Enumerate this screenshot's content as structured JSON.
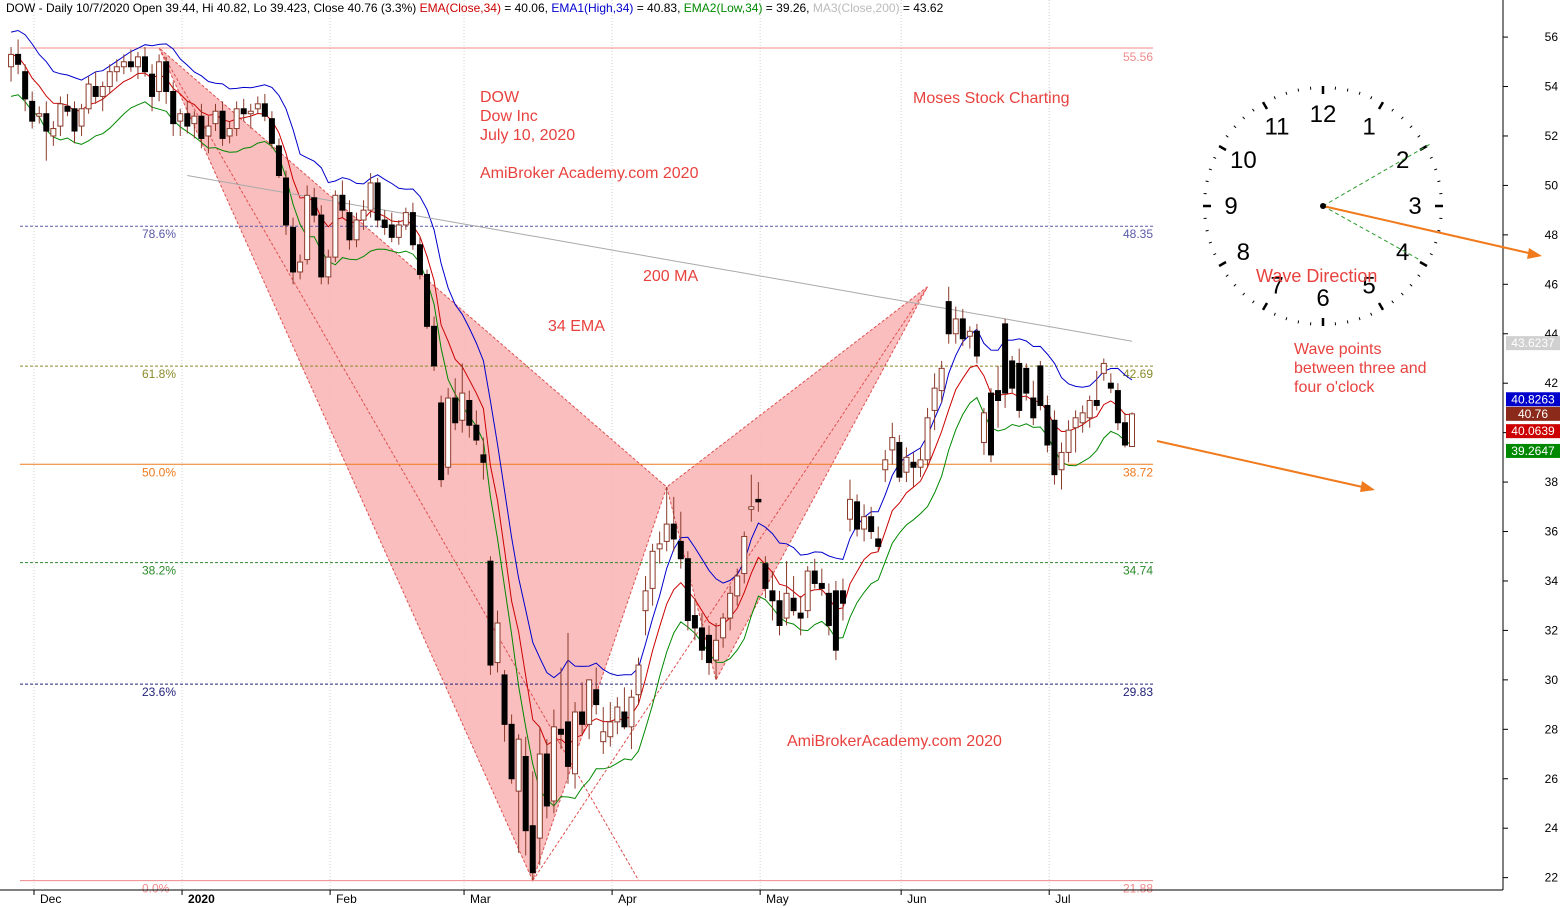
{
  "header": {
    "symbol_info": "DOW - Daily 10/7/2020 Open 39.44, Hi 40.82, Lo 39.423, Close 40.76 (3.3%)",
    "ema_label": "EMA(Close,34)",
    "ema_value": " = 40.06,",
    "ema1_label": "EMA1(High,34)",
    "ema1_value": " = 40.83,",
    "ema2_label": "EMA2(Low,34)",
    "ema2_value": " = 39.26,",
    "ma3_label": "MA3(Close,200)",
    "ma3_value": " = 43.62"
  },
  "colors": {
    "ema_close": "#cc0000",
    "ema_high": "#0000cc",
    "ema_low": "#008800",
    "ma200": "#aaaaaa",
    "pattern_fill": "#f9b3b3",
    "pattern_stroke": "#e05050",
    "annotation": "#e8423f",
    "arrow": "#f07a1c"
  },
  "annotations": {
    "title_lines": [
      "DOW",
      "Dow Inc",
      "July 10, 2020"
    ],
    "site1": "AmiBroker Academy.com  2020",
    "site2": "AmiBrokerAcademy.com  2020",
    "brand": "Moses Stock Charting",
    "ma_label": "200 MA",
    "ema_label": "34 EMA",
    "wave_direction": "Wave  Direction",
    "wave_points": [
      "Wave points",
      "between three and",
      "four o'clock"
    ]
  },
  "clock": {
    "numbers": [
      "12",
      "1",
      "2",
      "3",
      "4",
      "5",
      "6",
      "7",
      "8",
      "9",
      "10",
      "11"
    ]
  },
  "chart_data": {
    "type": "candlestick",
    "ylim": [
      21.5,
      57.5
    ],
    "y_ticks": [
      22,
      24,
      26,
      28,
      30,
      32,
      34,
      36,
      38,
      40,
      42,
      44,
      46,
      48,
      50,
      52,
      54,
      56
    ],
    "x_labels": [
      "Dec",
      "2020",
      "Feb",
      "Mar",
      "Apr",
      "May",
      "Jun",
      "Jul"
    ],
    "x_label_days": [
      0,
      21,
      42,
      61,
      82,
      103,
      123,
      144
    ],
    "fib_levels": [
      {
        "pct": "78.6%",
        "value": 48.35,
        "color": "#5a5aa8"
      },
      {
        "pct": "61.8%",
        "value": 42.69,
        "color": "#8a8a2a"
      },
      {
        "pct": "50.0%",
        "value": 38.72,
        "color": "#f07a1c"
      },
      {
        "pct": "38.2%",
        "value": 34.74,
        "color": "#2a8a2a"
      },
      {
        "pct": "23.6%",
        "value": 29.83,
        "color": "#22227a"
      },
      {
        "pct": "0.0%",
        "value": 21.88,
        "color": "#f08a8a"
      }
    ],
    "top_level": {
      "value": 55.56,
      "color": "#f08a8a"
    },
    "right_badges": [
      {
        "value": "43.6237",
        "bg": "#d0d0d0",
        "fg": "#000000",
        "y": 43.62
      },
      {
        "value": "40.8263",
        "bg": "#0000cc",
        "fg": "#ffffff",
        "y": 41.35
      },
      {
        "value": "40.76",
        "bg": "#8b2a1a",
        "fg": "#ffffff",
        "y": 40.76
      },
      {
        "value": "40.0639",
        "bg": "#cc0000",
        "fg": "#ffffff",
        "y": 40.06
      },
      {
        "value": "39.2647",
        "bg": "#008800",
        "fg": "#ffffff",
        "y": 39.26
      }
    ],
    "pattern_points": [
      {
        "day": 22,
        "price": 55.56
      },
      {
        "day": 75,
        "price": 21.88
      },
      {
        "day": 94,
        "price": 37.8
      },
      {
        "day": 101,
        "price": 30.0
      },
      {
        "day": 131,
        "price": 45.9
      }
    ],
    "candles": [
      [
        1,
        54.8,
        55.6,
        54.2,
        55.3
      ],
      [
        2,
        55.3,
        55.9,
        54.5,
        54.9
      ],
      [
        3,
        54.6,
        54.9,
        53.0,
        53.5
      ],
      [
        4,
        53.4,
        53.8,
        52.3,
        52.6
      ],
      [
        5,
        52.8,
        53.2,
        52.5,
        52.9
      ],
      [
        6,
        52.9,
        53.4,
        51.0,
        52.2
      ],
      [
        7,
        52.0,
        52.6,
        51.6,
        52.3
      ],
      [
        8,
        52.4,
        53.6,
        52.0,
        53.3
      ],
      [
        9,
        53.2,
        53.7,
        52.8,
        53.0
      ],
      [
        10,
        53.1,
        53.4,
        51.7,
        52.2
      ],
      [
        11,
        52.4,
        53.3,
        52.0,
        53.1
      ],
      [
        12,
        53.1,
        54.4,
        52.9,
        54.1
      ],
      [
        13,
        54.0,
        54.6,
        53.3,
        53.6
      ],
      [
        14,
        53.6,
        54.2,
        53.0,
        54.0
      ],
      [
        15,
        54.0,
        54.9,
        53.7,
        54.6
      ],
      [
        16,
        54.6,
        55.1,
        54.2,
        54.8
      ],
      [
        17,
        54.8,
        55.3,
        54.5,
        55.0
      ],
      [
        18,
        55.0,
        55.5,
        54.6,
        54.8
      ],
      [
        19,
        54.8,
        55.4,
        54.3,
        55.2
      ],
      [
        20,
        55.2,
        55.6,
        54.4,
        54.6
      ],
      [
        21,
        54.5,
        54.9,
        53.0,
        53.6
      ],
      [
        22,
        53.8,
        55.3,
        53.4,
        55.0
      ],
      [
        23,
        55.0,
        55.2,
        53.3,
        53.8
      ],
      [
        24,
        53.8,
        54.2,
        52.0,
        52.5
      ],
      [
        25,
        52.6,
        53.1,
        52.0,
        52.9
      ],
      [
        26,
        52.9,
        53.4,
        52.1,
        52.4
      ],
      [
        27,
        52.5,
        53.0,
        51.9,
        52.8
      ],
      [
        28,
        52.8,
        53.3,
        51.5,
        51.9
      ],
      [
        29,
        52.0,
        52.8,
        51.3,
        52.4
      ],
      [
        30,
        52.5,
        53.3,
        52.2,
        53.0
      ],
      [
        31,
        53.0,
        53.4,
        51.6,
        51.9
      ],
      [
        32,
        52.0,
        52.6,
        51.7,
        52.3
      ],
      [
        33,
        52.3,
        53.4,
        52.0,
        53.1
      ],
      [
        34,
        53.1,
        53.5,
        52.6,
        52.9
      ],
      [
        35,
        52.9,
        53.3,
        52.3,
        53.0
      ],
      [
        36,
        53.1,
        53.6,
        52.9,
        53.3
      ],
      [
        37,
        53.3,
        53.7,
        52.6,
        52.8
      ],
      [
        38,
        52.7,
        53.0,
        51.5,
        51.7
      ],
      [
        39,
        51.6,
        51.9,
        50.3,
        50.4
      ],
      [
        40,
        50.3,
        50.6,
        48.0,
        48.4
      ],
      [
        41,
        48.3,
        48.7,
        46.0,
        46.5
      ],
      [
        42,
        46.5,
        47.2,
        46.2,
        46.9
      ],
      [
        43,
        47.0,
        50.0,
        46.8,
        49.6
      ],
      [
        44,
        49.5,
        49.9,
        48.5,
        48.8
      ],
      [
        45,
        48.8,
        49.2,
        46.0,
        46.3
      ],
      [
        46,
        46.3,
        47.4,
        46.0,
        47.1
      ],
      [
        47,
        47.1,
        49.8,
        46.9,
        49.6
      ],
      [
        48,
        49.6,
        50.2,
        48.7,
        49.0
      ],
      [
        49,
        48.9,
        49.4,
        47.4,
        47.8
      ],
      [
        50,
        47.8,
        48.9,
        47.5,
        48.6
      ],
      [
        51,
        48.6,
        49.4,
        48.2,
        49.0
      ],
      [
        52,
        49.0,
        50.5,
        48.7,
        50.1
      ],
      [
        53,
        50.1,
        50.3,
        48.3,
        48.6
      ],
      [
        54,
        48.6,
        49.0,
        48.0,
        48.3
      ],
      [
        55,
        48.4,
        48.9,
        47.7,
        47.9
      ],
      [
        56,
        47.9,
        48.6,
        47.6,
        48.4
      ],
      [
        57,
        48.4,
        49.1,
        48.2,
        48.9
      ],
      [
        58,
        48.9,
        49.3,
        47.4,
        47.6
      ],
      [
        59,
        47.6,
        47.9,
        46.2,
        46.4
      ],
      [
        60,
        46.4,
        46.6,
        44.2,
        44.3
      ],
      [
        61,
        44.3,
        44.7,
        42.5,
        42.7
      ],
      [
        62,
        41.2,
        41.5,
        37.8,
        38.1
      ],
      [
        63,
        38.6,
        41.8,
        38.3,
        41.4
      ],
      [
        64,
        41.4,
        42.2,
        40.1,
        40.4
      ],
      [
        65,
        40.5,
        42.8,
        40.0,
        41.6
      ],
      [
        66,
        41.3,
        41.7,
        39.8,
        40.3
      ],
      [
        67,
        40.3,
        40.9,
        39.5,
        39.7
      ],
      [
        68,
        39.1,
        39.8,
        38.1,
        38.8
      ],
      [
        69,
        34.8,
        35.0,
        30.2,
        30.6
      ],
      [
        70,
        30.7,
        32.8,
        30.3,
        32.3
      ],
      [
        71,
        30.2,
        30.4,
        27.5,
        28.2
      ],
      [
        72,
        28.2,
        28.6,
        25.8,
        26.0
      ],
      [
        73,
        25.5,
        27.8,
        23.0,
        27.6
      ],
      [
        74,
        26.9,
        27.7,
        22.9,
        23.9
      ],
      [
        75,
        24.1,
        26.3,
        21.9,
        22.2
      ],
      [
        76,
        23.6,
        28.1,
        22.5,
        27.0
      ],
      [
        77,
        27.0,
        27.6,
        24.4,
        24.9
      ],
      [
        78,
        25.1,
        28.8,
        24.6,
        28.1
      ],
      [
        79,
        28.0,
        30.5,
        27.2,
        27.8
      ],
      [
        80,
        28.3,
        31.9,
        25.8,
        26.5
      ],
      [
        81,
        26.2,
        29.1,
        25.6,
        28.7
      ],
      [
        82,
        28.7,
        29.9,
        27.8,
        28.2
      ],
      [
        83,
        28.2,
        30.0,
        27.6,
        30.0
      ],
      [
        84,
        29.6,
        30.5,
        28.6,
        29.0
      ],
      [
        85,
        27.5,
        28.9,
        27.0,
        27.9
      ],
      [
        86,
        27.7,
        29.1,
        27.3,
        28.3
      ],
      [
        87,
        28.3,
        29.3,
        27.8,
        28.9
      ],
      [
        88,
        28.7,
        29.7,
        28.0,
        28.1
      ],
      [
        89,
        28.1,
        29.6,
        27.2,
        29.3
      ],
      [
        90,
        29.4,
        30.9,
        29.0,
        30.6
      ],
      [
        91,
        32.8,
        34.2,
        31.8,
        33.6
      ],
      [
        92,
        33.7,
        35.5,
        33.0,
        35.2
      ],
      [
        93,
        35.3,
        36.0,
        34.7,
        35.5
      ],
      [
        94,
        35.6,
        37.8,
        35.2,
        36.3
      ],
      [
        95,
        36.3,
        37.4,
        35.2,
        35.7
      ],
      [
        96,
        35.6,
        36.8,
        34.5,
        34.9
      ],
      [
        97,
        34.9,
        35.2,
        32.0,
        32.4
      ],
      [
        98,
        32.6,
        33.3,
        31.6,
        32.1
      ],
      [
        99,
        32.1,
        32.7,
        30.8,
        31.2
      ],
      [
        100,
        31.8,
        32.2,
        30.2,
        30.7
      ],
      [
        101,
        30.8,
        32.3,
        30.0,
        31.6
      ],
      [
        102,
        31.7,
        32.7,
        31.3,
        32.5
      ],
      [
        103,
        32.5,
        33.8,
        32.0,
        33.5
      ],
      [
        104,
        33.4,
        34.5,
        33.0,
        34.2
      ],
      [
        105,
        34.3,
        36.0,
        33.9,
        35.8
      ],
      [
        106,
        36.9,
        38.3,
        36.4,
        37.0
      ],
      [
        107,
        37.3,
        38.0,
        36.8,
        37.2
      ],
      [
        108,
        34.7,
        35.0,
        33.3,
        33.7
      ],
      [
        109,
        33.6,
        34.4,
        32.4,
        33.2
      ],
      [
        110,
        33.2,
        33.6,
        31.8,
        32.2
      ],
      [
        111,
        32.5,
        34.8,
        32.2,
        33.5
      ],
      [
        112,
        33.3,
        34.2,
        32.6,
        32.8
      ],
      [
        113,
        32.7,
        33.4,
        31.8,
        32.5
      ],
      [
        114,
        32.8,
        34.6,
        32.5,
        34.4
      ],
      [
        115,
        34.4,
        34.9,
        33.7,
        33.9
      ],
      [
        116,
        33.9,
        34.5,
        33.4,
        33.7
      ],
      [
        117,
        33.5,
        33.9,
        31.8,
        32.2
      ],
      [
        118,
        33.6,
        34.0,
        30.8,
        31.2
      ],
      [
        119,
        33.6,
        34.1,
        32.4,
        33.1
      ],
      [
        120,
        36.5,
        38.1,
        36.0,
        37.3
      ],
      [
        121,
        37.2,
        37.5,
        35.8,
        36.1
      ],
      [
        122,
        36.1,
        37.1,
        35.6,
        36.6
      ],
      [
        123,
        36.6,
        37.0,
        35.7,
        36.0
      ],
      [
        124,
        35.7,
        36.2,
        35.2,
        35.4
      ],
      [
        125,
        38.5,
        39.3,
        38.0,
        38.9
      ],
      [
        126,
        39.3,
        40.4,
        38.7,
        39.8
      ],
      [
        127,
        39.6,
        39.9,
        38.0,
        38.2
      ],
      [
        128,
        38.4,
        39.4,
        38.0,
        39.0
      ],
      [
        129,
        38.8,
        39.2,
        37.8,
        38.6
      ],
      [
        130,
        38.6,
        39.4,
        38.2,
        38.9
      ],
      [
        131,
        38.9,
        41.0,
        38.6,
        40.6
      ],
      [
        132,
        40.9,
        42.4,
        40.1,
        41.8
      ],
      [
        133,
        41.7,
        42.9,
        41.2,
        42.6
      ],
      [
        134,
        45.3,
        45.9,
        43.6,
        44.0
      ],
      [
        135,
        44.0,
        45.1,
        43.6,
        44.6
      ],
      [
        136,
        44.6,
        45.0,
        43.5,
        43.8
      ],
      [
        137,
        43.9,
        44.3,
        43.4,
        44.1
      ],
      [
        138,
        44.1,
        44.4,
        42.8,
        43.1
      ],
      [
        139,
        39.6,
        41.0,
        39.1,
        40.8
      ],
      [
        140,
        41.6,
        41.8,
        38.8,
        39.1
      ],
      [
        141,
        41.7,
        42.7,
        40.2,
        41.3
      ],
      [
        142,
        44.4,
        44.6,
        41.0,
        41.6
      ],
      [
        143,
        42.9,
        43.1,
        41.6,
        41.8
      ],
      [
        144,
        42.8,
        43.4,
        40.6,
        40.9
      ],
      [
        145,
        42.6,
        42.8,
        41.3,
        41.6
      ],
      [
        146,
        41.4,
        42.1,
        40.3,
        40.6
      ],
      [
        147,
        42.7,
        42.9,
        40.9,
        41.1
      ],
      [
        148,
        41.1,
        41.5,
        39.2,
        39.5
      ],
      [
        149,
        40.5,
        40.9,
        37.9,
        38.3
      ],
      [
        150,
        38.5,
        39.6,
        37.7,
        39.2
      ],
      [
        151,
        39.2,
        40.5,
        38.8,
        40.1
      ],
      [
        152,
        40.2,
        40.9,
        39.2,
        40.6
      ],
      [
        153,
        40.4,
        41.1,
        40.0,
        40.8
      ],
      [
        154,
        40.6,
        41.5,
        40.2,
        41.3
      ],
      [
        155,
        41.3,
        42.5,
        40.9,
        41.1
      ],
      [
        156,
        42.4,
        43.0,
        42.1,
        42.8
      ],
      [
        157,
        42.0,
        42.4,
        41.6,
        41.8
      ],
      [
        158,
        41.7,
        42.0,
        40.1,
        40.4
      ],
      [
        159,
        40.4,
        40.8,
        39.4,
        39.5
      ],
      [
        160,
        39.44,
        40.82,
        39.42,
        40.76
      ]
    ]
  }
}
